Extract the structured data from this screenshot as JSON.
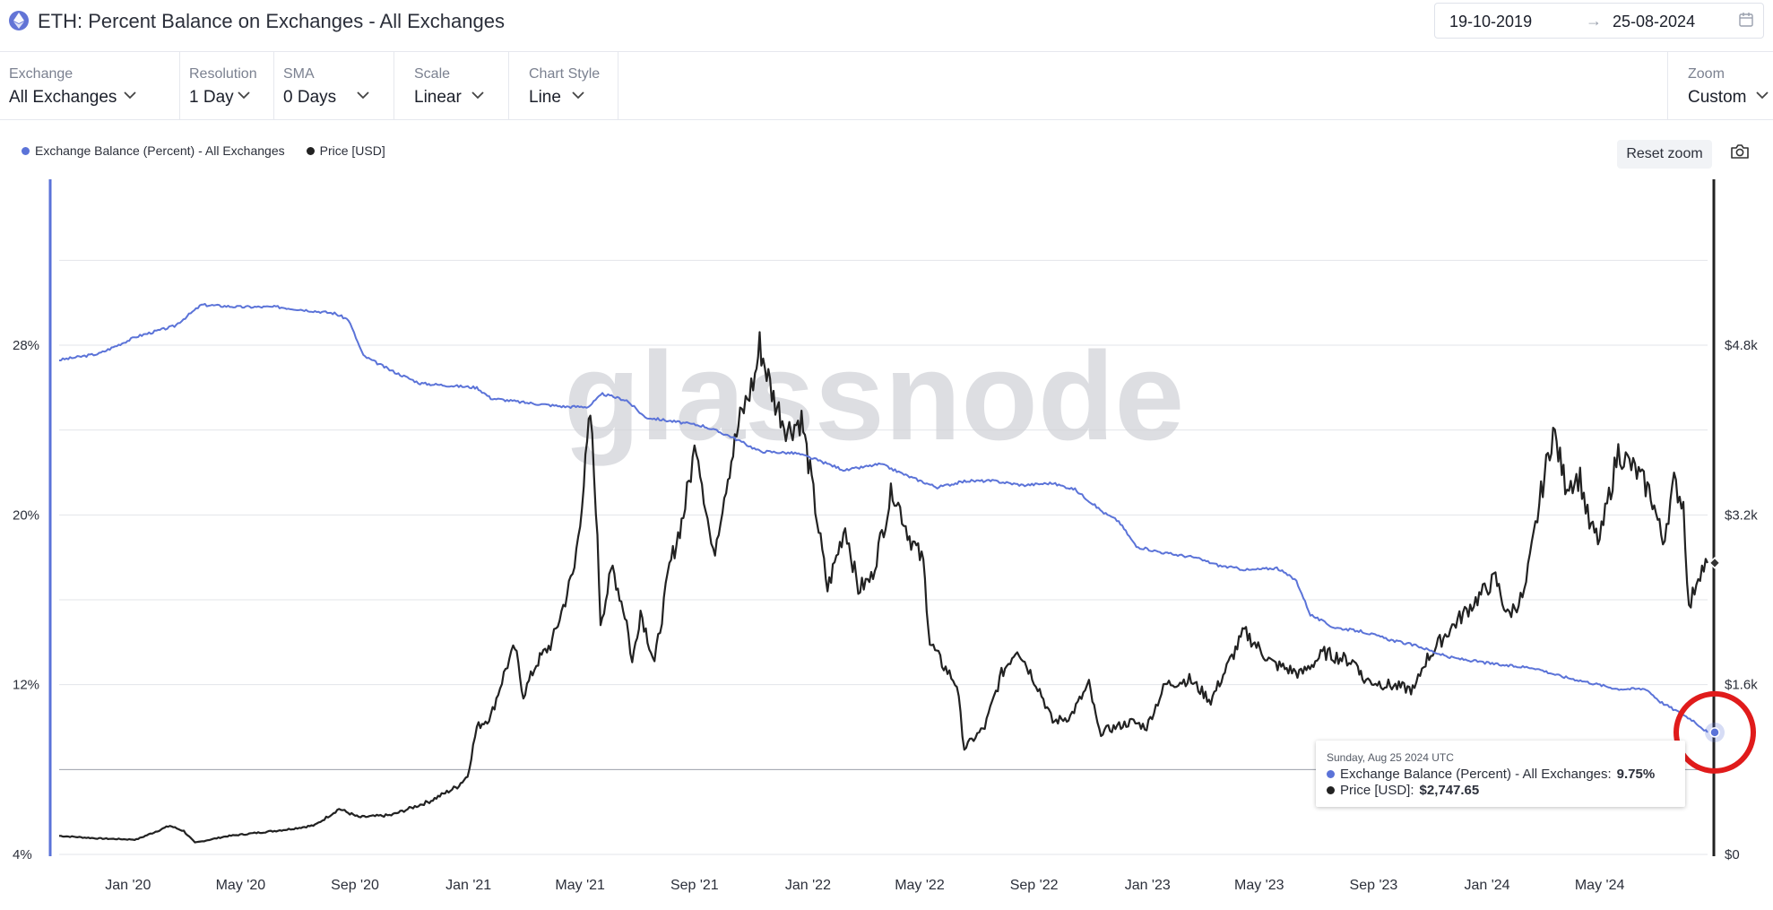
{
  "header": {
    "title": "ETH: Percent Balance on Exchanges - All Exchanges",
    "date_start": "19-10-2019",
    "date_arrow": "→",
    "date_end": "25-08-2024"
  },
  "toolbar": {
    "exchange": {
      "label": "Exchange",
      "value": "All Exchanges"
    },
    "resolution": {
      "label": "Resolution",
      "value": "1 Day"
    },
    "sma": {
      "label": "SMA",
      "value": "0 Days"
    },
    "scale": {
      "label": "Scale",
      "value": "Linear"
    },
    "chart_style": {
      "label": "Chart Style",
      "value": "Line"
    },
    "zoom": {
      "label": "Zoom",
      "value": "Custom"
    }
  },
  "legend": {
    "balance_label": "Exchange Balance (Percent) - All Exchanges",
    "price_label": "Price [USD]"
  },
  "reset_zoom_label": "Reset zoom",
  "watermark": "glassnode",
  "tooltip": {
    "date": "Sunday, Aug 25 2024 UTC",
    "balance_label": "Exchange Balance (Percent) - All Exchanges:",
    "balance_value": "9.75%",
    "price_label": "Price [USD]:",
    "price_value": "$2,747.65"
  },
  "colors": {
    "balance": "#5b73d8",
    "price": "#222222",
    "highlight_circle": "#e01b1b",
    "grid": "#e3e5ea"
  },
  "chart_data": {
    "type": "line",
    "x_range": [
      "2019-10-19",
      "2024-08-25"
    ],
    "x_ticks": [
      {
        "date": "2020-01-01",
        "label": "Jan '20"
      },
      {
        "date": "2020-05-01",
        "label": "May '20"
      },
      {
        "date": "2020-09-01",
        "label": "Sep '20"
      },
      {
        "date": "2021-01-01",
        "label": "Jan '21"
      },
      {
        "date": "2021-05-01",
        "label": "May '21"
      },
      {
        "date": "2021-09-01",
        "label": "Sep '21"
      },
      {
        "date": "2022-01-01",
        "label": "Jan '22"
      },
      {
        "date": "2022-05-01",
        "label": "May '22"
      },
      {
        "date": "2022-09-01",
        "label": "Sep '22"
      },
      {
        "date": "2023-01-01",
        "label": "Jan '23"
      },
      {
        "date": "2023-05-01",
        "label": "May '23"
      },
      {
        "date": "2023-09-01",
        "label": "Sep '23"
      },
      {
        "date": "2024-01-01",
        "label": "Jan '24"
      },
      {
        "date": "2024-05-01",
        "label": "May '24"
      }
    ],
    "y_left": {
      "min": 4,
      "max": 28,
      "ticks": [
        4,
        12,
        20,
        28
      ],
      "tick_labels": [
        "4%",
        "12%",
        "20%",
        "28%"
      ]
    },
    "y_right": {
      "min": 0,
      "max": 4800,
      "ticks": [
        0,
        1600,
        3200,
        4800
      ],
      "tick_labels": [
        "$0",
        "$1.6k",
        "$3.2k",
        "$4.8k"
      ]
    },
    "grid": true,
    "series": [
      {
        "name": "Exchange Balance (Percent) - All Exchanges",
        "axis": "left",
        "points": [
          [
            "2019-10-19",
            27.3
          ],
          [
            "2019-12-01",
            27.6
          ],
          [
            "2020-01-10",
            28.4
          ],
          [
            "2020-02-20",
            28.9
          ],
          [
            "2020-03-20",
            29.9
          ],
          [
            "2020-05-01",
            29.8
          ],
          [
            "2020-06-10",
            29.8
          ],
          [
            "2020-08-10",
            29.5
          ],
          [
            "2020-08-25",
            29.2
          ],
          [
            "2020-09-10",
            27.5
          ],
          [
            "2020-10-10",
            26.8
          ],
          [
            "2020-11-10",
            26.2
          ],
          [
            "2020-12-10",
            26.1
          ],
          [
            "2021-01-10",
            26.0
          ],
          [
            "2021-01-25",
            25.5
          ],
          [
            "2021-03-01",
            25.3
          ],
          [
            "2021-04-15",
            25.1
          ],
          [
            "2021-05-10",
            25.1
          ],
          [
            "2021-05-25",
            25.7
          ],
          [
            "2021-06-20",
            25.4
          ],
          [
            "2021-07-10",
            24.6
          ],
          [
            "2021-08-10",
            24.4
          ],
          [
            "2021-09-10",
            24.2
          ],
          [
            "2021-10-10",
            23.7
          ],
          [
            "2021-11-10",
            23.0
          ],
          [
            "2021-12-20",
            22.9
          ],
          [
            "2022-01-10",
            22.6
          ],
          [
            "2022-02-10",
            22.1
          ],
          [
            "2022-03-20",
            22.4
          ],
          [
            "2022-04-20",
            21.8
          ],
          [
            "2022-05-20",
            21.3
          ],
          [
            "2022-06-20",
            21.6
          ],
          [
            "2022-07-20",
            21.6
          ],
          [
            "2022-08-20",
            21.4
          ],
          [
            "2022-09-20",
            21.5
          ],
          [
            "2022-10-15",
            21.2
          ],
          [
            "2022-11-15",
            20.1
          ],
          [
            "2022-12-01",
            19.7
          ],
          [
            "2022-12-20",
            18.5
          ],
          [
            "2023-01-20",
            18.2
          ],
          [
            "2023-02-20",
            18.0
          ],
          [
            "2023-03-20",
            17.6
          ],
          [
            "2023-04-20",
            17.4
          ],
          [
            "2023-05-20",
            17.5
          ],
          [
            "2023-06-10",
            16.9
          ],
          [
            "2023-06-25",
            15.3
          ],
          [
            "2023-07-20",
            14.7
          ],
          [
            "2023-08-20",
            14.5
          ],
          [
            "2023-09-20",
            14.1
          ],
          [
            "2023-10-20",
            13.8
          ],
          [
            "2023-11-20",
            13.3
          ],
          [
            "2023-12-20",
            13.1
          ],
          [
            "2024-01-20",
            12.9
          ],
          [
            "2024-02-20",
            12.8
          ],
          [
            "2024-03-20",
            12.4
          ],
          [
            "2024-04-20",
            12.1
          ],
          [
            "2024-05-20",
            11.8
          ],
          [
            "2024-06-20",
            11.8
          ],
          [
            "2024-07-05",
            11.2
          ],
          [
            "2024-07-25",
            10.7
          ],
          [
            "2024-08-10",
            10.3
          ],
          [
            "2024-08-25",
            9.75
          ]
        ]
      },
      {
        "name": "Price [USD]",
        "axis": "right",
        "points": [
          [
            "2019-10-19",
            175
          ],
          [
            "2019-12-01",
            150
          ],
          [
            "2020-01-10",
            140
          ],
          [
            "2020-02-15",
            270
          ],
          [
            "2020-03-01",
            220
          ],
          [
            "2020-03-13",
            110
          ],
          [
            "2020-04-15",
            170
          ],
          [
            "2020-05-20",
            205
          ],
          [
            "2020-06-20",
            235
          ],
          [
            "2020-07-20",
            275
          ],
          [
            "2020-08-15",
            430
          ],
          [
            "2020-09-05",
            350
          ],
          [
            "2020-10-10",
            370
          ],
          [
            "2020-11-20",
            500
          ],
          [
            "2020-12-20",
            640
          ],
          [
            "2020-12-31",
            740
          ],
          [
            "2021-01-10",
            1200
          ],
          [
            "2021-01-25",
            1300
          ],
          [
            "2021-02-10",
            1750
          ],
          [
            "2021-02-20",
            1950
          ],
          [
            "2021-03-01",
            1500
          ],
          [
            "2021-03-15",
            1800
          ],
          [
            "2021-04-01",
            2000
          ],
          [
            "2021-04-15",
            2400
          ],
          [
            "2021-04-25",
            2700
          ],
          [
            "2021-05-05",
            3500
          ],
          [
            "2021-05-12",
            4150
          ],
          [
            "2021-05-18",
            3300
          ],
          [
            "2021-05-23",
            2200
          ],
          [
            "2021-06-05",
            2700
          ],
          [
            "2021-06-20",
            2200
          ],
          [
            "2021-06-26",
            1800
          ],
          [
            "2021-07-05",
            2300
          ],
          [
            "2021-07-20",
            1800
          ],
          [
            "2021-08-05",
            2700
          ],
          [
            "2021-08-20",
            3200
          ],
          [
            "2021-09-03",
            3900
          ],
          [
            "2021-09-21",
            2800
          ],
          [
            "2021-10-05",
            3500
          ],
          [
            "2021-10-20",
            4100
          ],
          [
            "2021-11-05",
            4500
          ],
          [
            "2021-11-10",
            4800
          ],
          [
            "2021-11-25",
            4300
          ],
          [
            "2021-12-10",
            4000
          ],
          [
            "2021-12-25",
            4100
          ],
          [
            "2022-01-05",
            3500
          ],
          [
            "2022-01-22",
            2500
          ],
          [
            "2022-02-10",
            3100
          ],
          [
            "2022-02-24",
            2500
          ],
          [
            "2022-03-10",
            2600
          ],
          [
            "2022-04-02",
            3450
          ],
          [
            "2022-04-20",
            3000
          ],
          [
            "2022-05-05",
            2750
          ],
          [
            "2022-05-12",
            2000
          ],
          [
            "2022-05-25",
            1800
          ],
          [
            "2022-06-10",
            1600
          ],
          [
            "2022-06-18",
            1000
          ],
          [
            "2022-07-10",
            1200
          ],
          [
            "2022-07-28",
            1700
          ],
          [
            "2022-08-14",
            1950
          ],
          [
            "2022-09-07",
            1550
          ],
          [
            "2022-09-21",
            1250
          ],
          [
            "2022-10-10",
            1300
          ],
          [
            "2022-10-30",
            1600
          ],
          [
            "2022-11-10",
            1150
          ],
          [
            "2022-12-15",
            1250
          ],
          [
            "2022-12-31",
            1200
          ],
          [
            "2023-01-20",
            1600
          ],
          [
            "2023-02-15",
            1650
          ],
          [
            "2023-03-10",
            1450
          ],
          [
            "2023-04-15",
            2100
          ],
          [
            "2023-05-15",
            1800
          ],
          [
            "2023-06-15",
            1700
          ],
          [
            "2023-07-10",
            1900
          ],
          [
            "2023-08-15",
            1800
          ],
          [
            "2023-08-20",
            1650
          ],
          [
            "2023-09-15",
            1600
          ],
          [
            "2023-10-15",
            1550
          ],
          [
            "2023-10-25",
            1800
          ],
          [
            "2023-11-15",
            2050
          ],
          [
            "2023-12-10",
            2300
          ],
          [
            "2024-01-10",
            2600
          ],
          [
            "2024-01-23",
            2250
          ],
          [
            "2024-02-10",
            2450
          ],
          [
            "2024-02-28",
            3400
          ],
          [
            "2024-03-12",
            4000
          ],
          [
            "2024-03-25",
            3500
          ],
          [
            "2024-04-10",
            3550
          ],
          [
            "2024-04-20",
            3100
          ],
          [
            "2024-05-01",
            2950
          ],
          [
            "2024-05-21",
            3800
          ],
          [
            "2024-06-10",
            3600
          ],
          [
            "2024-06-25",
            3400
          ],
          [
            "2024-07-08",
            2950
          ],
          [
            "2024-07-20",
            3500
          ],
          [
            "2024-07-30",
            3300
          ],
          [
            "2024-08-05",
            2300
          ],
          [
            "2024-08-15",
            2650
          ],
          [
            "2024-08-25",
            2747.65
          ]
        ]
      }
    ]
  }
}
